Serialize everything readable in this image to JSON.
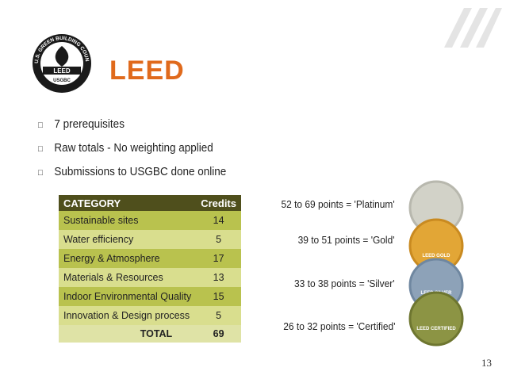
{
  "header": {
    "title": "LEED",
    "logo": {
      "ring": "U.S. GREEN BUILDING COUNCIL",
      "name": "LEED",
      "org": "USGBC"
    }
  },
  "bullets": [
    "7 prerequisites",
    "Raw totals - No weighting applied",
    "Submissions to USGBC done online"
  ],
  "table": {
    "columns": [
      "CATEGORY",
      "Credits"
    ],
    "rows": [
      [
        "Sustainable sites",
        14
      ],
      [
        "Water efficiency",
        5
      ],
      [
        "Energy & Atmosphere",
        17
      ],
      [
        "Materials & Resources",
        13
      ],
      [
        "Indoor Environmental Quality",
        15
      ],
      [
        "Innovation & Design process",
        5
      ]
    ],
    "total": [
      "TOTAL",
      69
    ]
  },
  "levels": [
    "52 to 69 points = 'Platinum'",
    "39 to 51 points = 'Gold'",
    "33 to 38 points = 'Silver'",
    "26 to 32 points = 'Certified'"
  ],
  "medals": [
    "LEED GOLD",
    "LEED SILVER",
    "LEED CERTIFIED"
  ],
  "page_number": 13
}
